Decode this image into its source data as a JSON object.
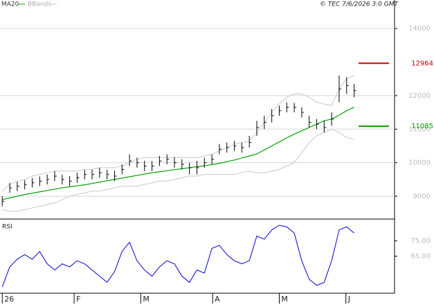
{
  "chart_data": {
    "type": "ohlc",
    "header": {
      "legend": [
        {
          "name": "MA20",
          "color": "#00a000"
        },
        {
          "name": "BBands",
          "color": "#c8c8c8"
        }
      ],
      "source": "© TEC 7/6/2026 3:0 GMT"
    },
    "xlim": [
      -0.3,
      52.4
    ],
    "xticks": [
      {
        "value": 0,
        "label": "26"
      },
      {
        "value": 9.6,
        "label": "F"
      },
      {
        "value": 18.5,
        "label": "M"
      },
      {
        "value": 28.1,
        "label": "A"
      },
      {
        "value": 37,
        "label": "M"
      },
      {
        "value": 45.9,
        "label": "J"
      }
    ],
    "ylim": [
      8340,
      14850
    ],
    "yticks": [
      9000,
      10000,
      11000,
      12000,
      14000
    ],
    "grid": true,
    "high": [
      9000,
      9400,
      9430,
      9480,
      9540,
      9590,
      9650,
      9750,
      9640,
      9600,
      9700,
      9790,
      9790,
      9850,
      9790,
      9760,
      9950,
      10250,
      10150,
      10060,
      10050,
      10200,
      10250,
      10160,
      10100,
      10000,
      10050,
      10150,
      10250,
      10560,
      10600,
      10650,
      10600,
      10800,
      11250,
      11400,
      11600,
      11700,
      11800,
      11780,
      11650,
      11400,
      11300,
      11250,
      11500,
      12600,
      12550,
      12350
    ],
    "low": [
      8700,
      9100,
      9150,
      9200,
      9260,
      9300,
      9350,
      9450,
      9350,
      9300,
      9400,
      9500,
      9500,
      9550,
      9500,
      9450,
      9650,
      9900,
      9850,
      9750,
      9750,
      9900,
      9950,
      9850,
      9800,
      9650,
      9650,
      9850,
      9950,
      10250,
      10300,
      10350,
      10300,
      10450,
      10800,
      11000,
      11200,
      11400,
      11500,
      11500,
      11350,
      11050,
      11000,
      10900,
      11100,
      11800,
      12050,
      11950
    ],
    "close": [
      8850,
      9250,
      9300,
      9350,
      9400,
      9450,
      9500,
      9600,
      9500,
      9450,
      9550,
      9650,
      9650,
      9700,
      9650,
      9600,
      9800,
      10050,
      10000,
      9900,
      9900,
      10050,
      10100,
      10000,
      9950,
      9850,
      9850,
      10000,
      10100,
      10400,
      10450,
      10500,
      10450,
      10600,
      11050,
      11200,
      11400,
      11550,
      11650,
      11650,
      11500,
      11200,
      11150,
      11050,
      11300,
      12200,
      12300,
      12150
    ],
    "series": [
      {
        "name": "MA20",
        "color": "#00a000",
        "values": [
          8900,
          8950,
          9000,
          9050,
          9090,
          9130,
          9170,
          9210,
          9250,
          9280,
          9310,
          9340,
          9380,
          9420,
          9460,
          9500,
          9540,
          9580,
          9620,
          9660,
          9700,
          9730,
          9760,
          9790,
          9820,
          9850,
          9880,
          9910,
          9940,
          9980,
          10030,
          10080,
          10140,
          10200,
          10260,
          10380,
          10500,
          10620,
          10740,
          10850,
          10950,
          11050,
          11150,
          11250,
          11300,
          11420,
          11550,
          11650
        ]
      },
      {
        "name": "BBands",
        "color": "#c8c8c8",
        "values": [
          9150,
          9350,
          9450,
          9500,
          9600,
          9650,
          9700,
          9750,
          9750,
          9750,
          9750,
          9800,
          9800,
          9850,
          9850,
          9850,
          9900,
          10000,
          10100,
          10150,
          10150,
          10150,
          10150,
          10150,
          10150,
          10150,
          10150,
          10200,
          10250,
          10350,
          10450,
          10550,
          10600,
          10650,
          10900,
          11200,
          11500,
          11750,
          11950,
          12050,
          12050,
          11950,
          11800,
          11750,
          11700,
          12200,
          12500,
          12600
        ]
      },
      {
        "name": "BBands",
        "color": "#c8c8c8",
        "values": [
          8600,
          8550,
          8550,
          8600,
          8650,
          8700,
          8750,
          8800,
          8900,
          9000,
          9050,
          9100,
          9150,
          9150,
          9200,
          9250,
          9300,
          9300,
          9300,
          9350,
          9400,
          9450,
          9450,
          9500,
          9550,
          9600,
          9600,
          9650,
          9650,
          9650,
          9650,
          9650,
          9700,
          9750,
          9700,
          9700,
          9750,
          9800,
          9900,
          10000,
          10300,
          10600,
          10800,
          10900,
          11000,
          10900,
          10750,
          10700
        ]
      }
    ],
    "levels": [
      {
        "value": 12964,
        "color": "#cc0000"
      },
      {
        "value": 11085,
        "color": "#00a000"
      }
    ],
    "rsi": {
      "title": "RSI",
      "color": "#0000cc",
      "ylim": [
        41.4,
        88.6
      ],
      "yticks": [
        {
          "value": 75,
          "label": "75.00"
        },
        {
          "value": 65,
          "label": "65.00"
        }
      ],
      "values": [
        45,
        58,
        63,
        66,
        63,
        68,
        60,
        56,
        60,
        58,
        62,
        60,
        56,
        52,
        48,
        55,
        68,
        74,
        62,
        56,
        52,
        58,
        62,
        60,
        52,
        48,
        56,
        54,
        70,
        72,
        66,
        62,
        60,
        62,
        78,
        76,
        82,
        85,
        84,
        80,
        62,
        50,
        46,
        48,
        62,
        82,
        84,
        80
      ]
    }
  }
}
